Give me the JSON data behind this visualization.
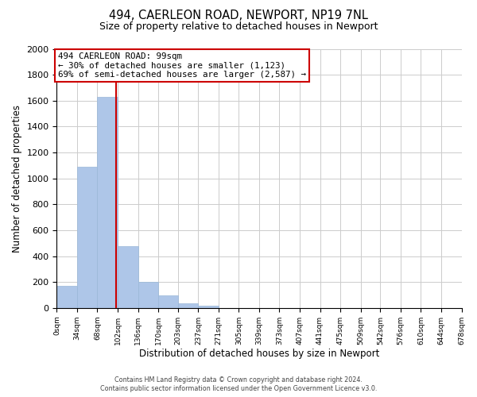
{
  "title": "494, CAERLEON ROAD, NEWPORT, NP19 7NL",
  "subtitle": "Size of property relative to detached houses in Newport",
  "xlabel": "Distribution of detached houses by size in Newport",
  "ylabel": "Number of detached properties",
  "bar_edges": [
    0,
    34,
    68,
    102,
    136,
    170,
    203,
    237,
    271,
    305,
    339,
    373,
    407,
    441,
    475,
    509,
    542,
    576,
    610,
    644,
    678
  ],
  "bar_heights": [
    170,
    1090,
    1630,
    480,
    200,
    100,
    35,
    20,
    0,
    0,
    0,
    0,
    0,
    0,
    0,
    0,
    0,
    0,
    0,
    0
  ],
  "bar_color": "#aec6e8",
  "bar_edgecolor": "#9ab8d8",
  "property_line_x": 99,
  "property_line_color": "#cc0000",
  "annotation_text": "494 CAERLEON ROAD: 99sqm\n← 30% of detached houses are smaller (1,123)\n69% of semi-detached houses are larger (2,587) →",
  "annotation_box_edgecolor": "#cc0000",
  "annotation_box_facecolor": "#ffffff",
  "ylim": [
    0,
    2000
  ],
  "yticks": [
    0,
    200,
    400,
    600,
    800,
    1000,
    1200,
    1400,
    1600,
    1800,
    2000
  ],
  "xtick_labels": [
    "0sqm",
    "34sqm",
    "68sqm",
    "102sqm",
    "136sqm",
    "170sqm",
    "203sqm",
    "237sqm",
    "271sqm",
    "305sqm",
    "339sqm",
    "373sqm",
    "407sqm",
    "441sqm",
    "475sqm",
    "509sqm",
    "542sqm",
    "576sqm",
    "610sqm",
    "644sqm",
    "678sqm"
  ],
  "footer_line1": "Contains HM Land Registry data © Crown copyright and database right 2024.",
  "footer_line2": "Contains public sector information licensed under the Open Government Licence v3.0.",
  "background_color": "#ffffff",
  "grid_color": "#cccccc"
}
